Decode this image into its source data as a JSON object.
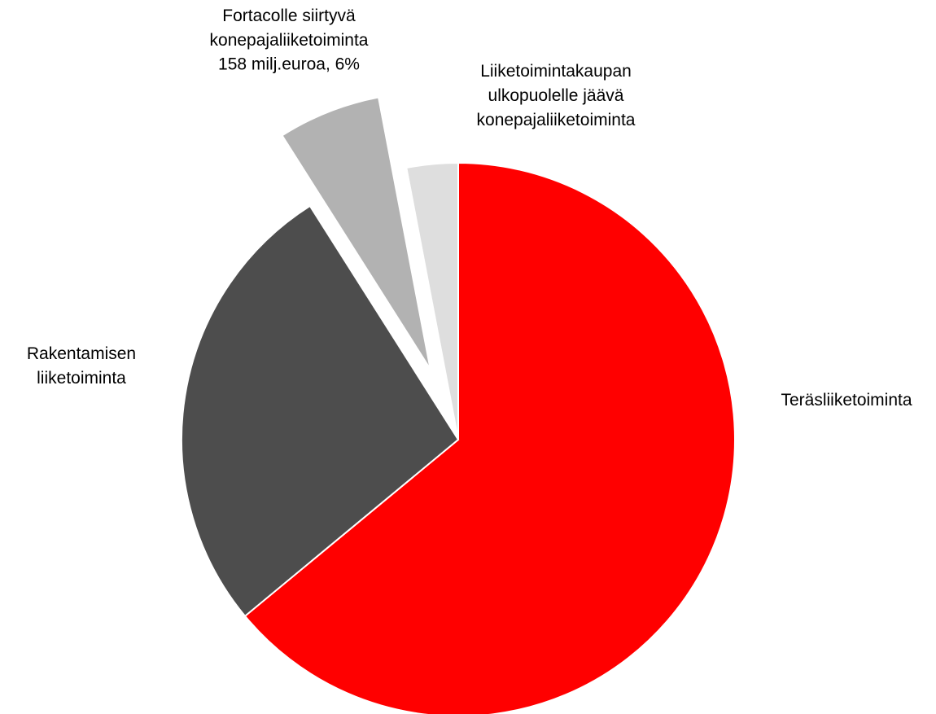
{
  "chart_data": {
    "type": "pie",
    "categories": [
      "Teräsliiketoiminta",
      "Rakentamisen liiketoiminta",
      "Fortacolle siirtyvä konepajaliiketoiminta",
      "Liiketoimintakaupan ulkopuolelle jäävä konepajaliiketoiminta"
    ],
    "values": [
      64,
      27,
      6,
      3
    ],
    "value_labels": [
      null,
      null,
      "158 milj.euroa, 6%",
      null
    ],
    "colors": [
      "#ff0000",
      "#4d4d4d",
      "#b2b2b2",
      "#dedede"
    ],
    "exploded": [
      false,
      false,
      true,
      false
    ]
  }
}
